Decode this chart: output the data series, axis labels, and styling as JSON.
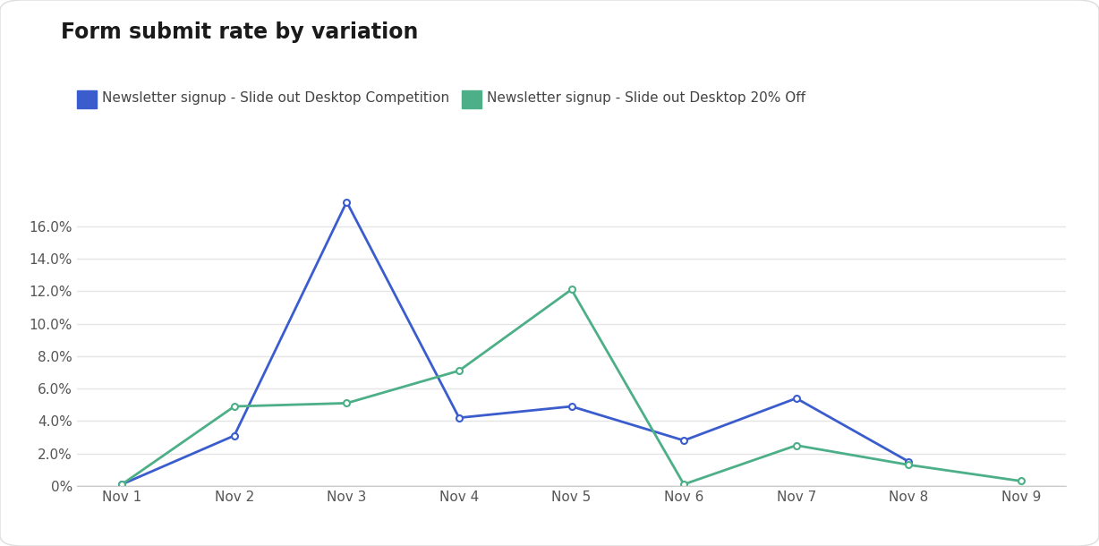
{
  "title": "Form submit rate by variation",
  "x_labels": [
    "Nov 1",
    "Nov 2",
    "Nov 3",
    "Nov 4",
    "Nov 5",
    "Nov 6",
    "Nov 7",
    "Nov 8",
    "Nov 9"
  ],
  "series": [
    {
      "label": "Newsletter signup - Slide out Desktop Competition",
      "color": "#3a5ccd",
      "values": [
        0.001,
        0.031,
        0.175,
        0.042,
        0.049,
        0.028,
        0.054,
        0.015,
        null
      ]
    },
    {
      "label": "Newsletter signup - Slide out Desktop 20% Off",
      "color": "#4caf87",
      "values": [
        0.001,
        0.049,
        0.051,
        0.071,
        0.121,
        0.001,
        0.025,
        0.013,
        0.003
      ]
    }
  ],
  "ylim": [
    0,
    0.185
  ],
  "yticks": [
    0,
    0.02,
    0.04,
    0.06,
    0.08,
    0.1,
    0.12,
    0.14,
    0.16
  ],
  "background_color": "#ffffff",
  "card_background": "#ffffff",
  "grid_color": "#e5e5e5",
  "title_fontsize": 17,
  "legend_fontsize": 11,
  "tick_fontsize": 11,
  "title_color": "#1a1a1a",
  "tick_color": "#555555"
}
